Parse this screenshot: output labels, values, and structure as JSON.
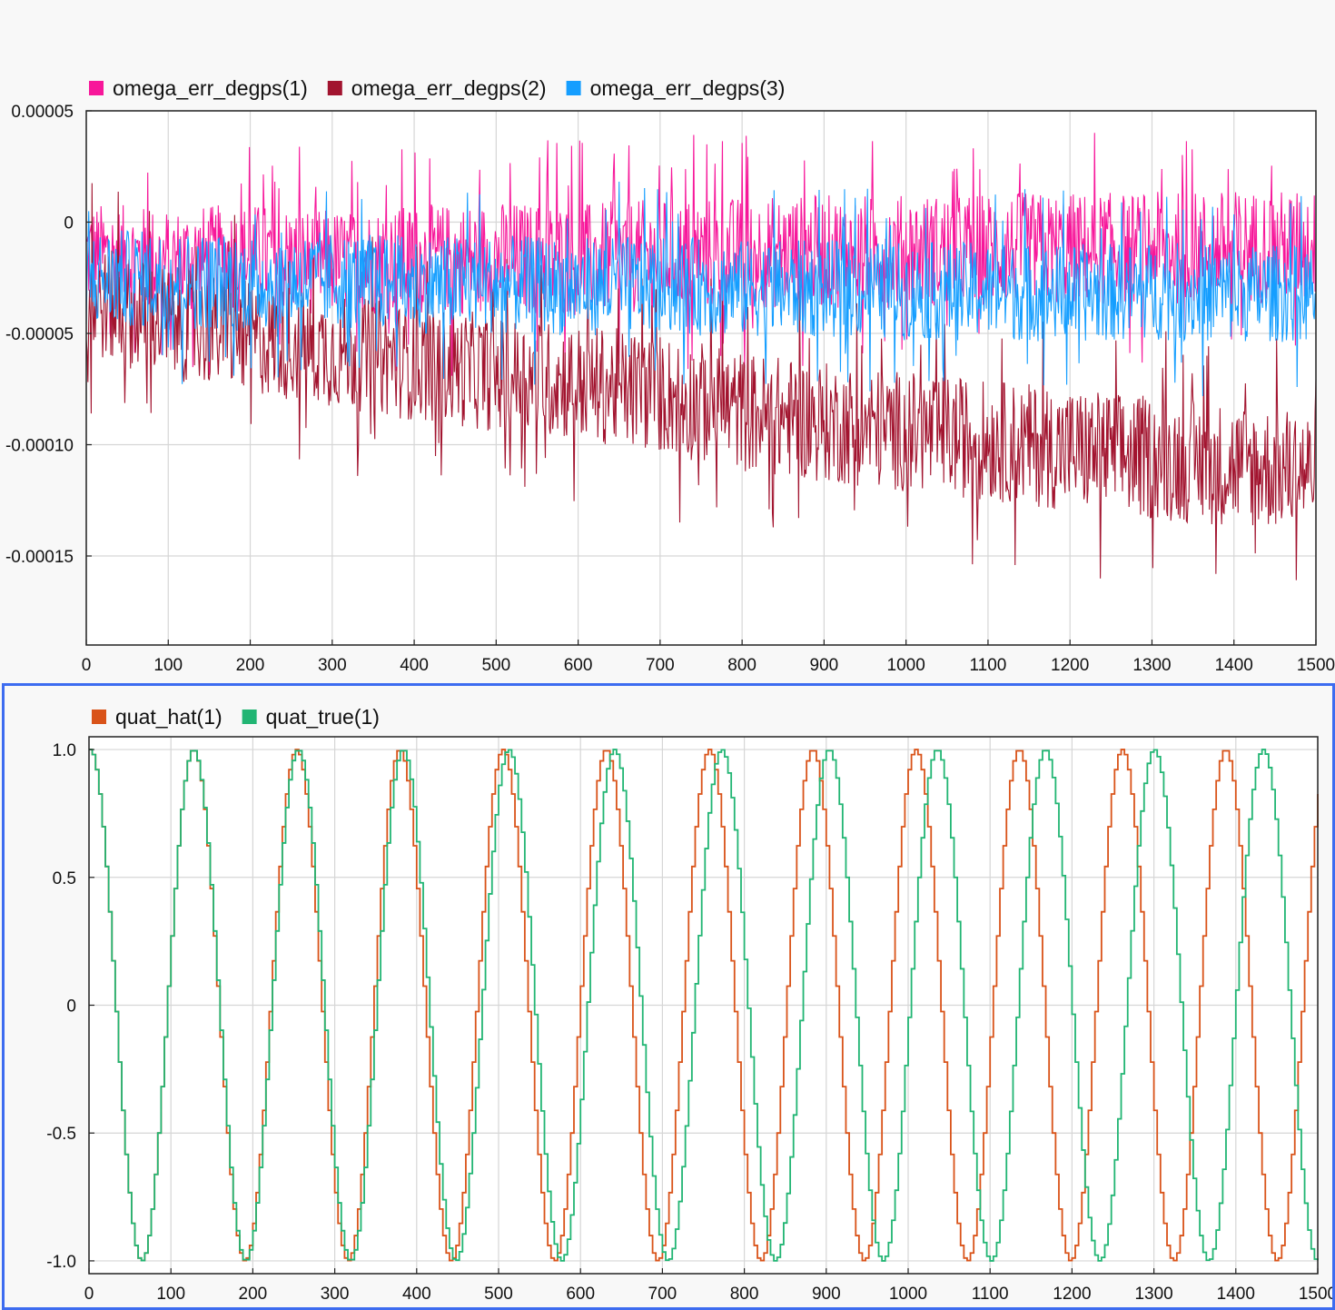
{
  "chart_data": [
    {
      "type": "line",
      "title": "",
      "xlabel": "",
      "ylabel": "",
      "xlim": [
        0,
        1500
      ],
      "ylim": [
        -0.00019,
        5e-05
      ],
      "xticks": [
        0,
        100,
        200,
        300,
        400,
        500,
        600,
        700,
        800,
        900,
        1000,
        1100,
        1200,
        1300,
        1400,
        1500
      ],
      "xtick_labels": [
        "0",
        "100",
        "200",
        "300",
        "400",
        "500",
        "600",
        "700",
        "800",
        "900",
        "1000",
        "1100",
        "1200",
        "1300",
        "1400",
        "1500"
      ],
      "yticks": [
        5e-05,
        0,
        -5e-05,
        -0.0001,
        -0.00015
      ],
      "ytick_labels": [
        "0.00005",
        "0",
        "-0.00005",
        "-0.00010",
        "-0.00015"
      ],
      "grid": true,
      "legend_position": "top-left",
      "series": [
        {
          "name": "omega_err_degps(1)",
          "color": "#f7179a",
          "x": [
            0,
            100,
            200,
            300,
            400,
            500,
            600,
            700,
            800,
            900,
            1000,
            1100,
            1200,
            1300,
            1400,
            1500
          ],
          "center": [
            -1.5e-05,
            -1.8e-05,
            -1.6e-05,
            -1.8e-05,
            -1.7e-05,
            -1.6e-05,
            -1.7e-05,
            -1.5e-05,
            -1.4e-05,
            -1.3e-05,
            -1.3e-05,
            -1.2e-05,
            -1.2e-05,
            -1.2e-05,
            -1.1e-05,
            -1.1e-05
          ],
          "spread": [
            2.8e-05,
            2.9e-05,
            2.9e-05,
            2.8e-05,
            2.9e-05,
            3e-05,
            3e-05,
            3e-05,
            3e-05,
            3e-05,
            3e-05,
            3e-05,
            3e-05,
            3e-05,
            3e-05,
            3e-05
          ]
        },
        {
          "name": "omega_err_degps(2)",
          "color": "#a2142f",
          "x": [
            0,
            100,
            200,
            300,
            400,
            500,
            600,
            700,
            800,
            900,
            1000,
            1100,
            1200,
            1300,
            1400,
            1500
          ],
          "center": [
            -3.5e-05,
            -4.5e-05,
            -5.2e-05,
            -5.8e-05,
            -6.3e-05,
            -6.8e-05,
            -7.2e-05,
            -7.7e-05,
            -8.5e-05,
            -9e-05,
            -9.4e-05,
            -9.8e-05,
            -0.000102,
            -0.000106,
            -0.000109,
            -0.000112
          ],
          "spread": [
            3e-05,
            3e-05,
            3e-05,
            3e-05,
            3.1e-05,
            3.1e-05,
            3.1e-05,
            3.2e-05,
            3.2e-05,
            3.2e-05,
            3.2e-05,
            3.2e-05,
            3.3e-05,
            3.3e-05,
            3.3e-05,
            3.3e-05
          ]
        },
        {
          "name": "omega_err_degps(3)",
          "color": "#159eff",
          "x": [
            0,
            100,
            200,
            300,
            400,
            500,
            600,
            700,
            800,
            900,
            1000,
            1100,
            1200,
            1300,
            1400,
            1500
          ],
          "center": [
            -2.5e-05,
            -2.6e-05,
            -2.7e-05,
            -2.6e-05,
            -2.8e-05,
            -2.8e-05,
            -2.9e-05,
            -2.8e-05,
            -3e-05,
            -3e-05,
            -3.1e-05,
            -3.1e-05,
            -3.2e-05,
            -3.1e-05,
            -3.2e-05,
            -3.2e-05
          ],
          "spread": [
            2.6e-05,
            2.6e-05,
            2.6e-05,
            2.6e-05,
            2.6e-05,
            2.6e-05,
            2.6e-05,
            2.6e-05,
            2.6e-05,
            2.6e-05,
            2.6e-05,
            2.6e-05,
            2.6e-05,
            2.6e-05,
            2.6e-05,
            2.6e-05
          ]
        }
      ]
    },
    {
      "type": "line",
      "title": "",
      "xlabel": "",
      "ylabel": "",
      "xlim": [
        0,
        1500
      ],
      "ylim": [
        -1.05,
        1.05
      ],
      "xticks": [
        0,
        100,
        200,
        300,
        400,
        500,
        600,
        700,
        800,
        900,
        1000,
        1100,
        1200,
        1300,
        1400,
        1500
      ],
      "xtick_labels": [
        "0",
        "100",
        "200",
        "300",
        "400",
        "500",
        "600",
        "700",
        "800",
        "900",
        "1000",
        "1100",
        "1200",
        "1300",
        "1400",
        "1500"
      ],
      "yticks": [
        1.0,
        0.5,
        0,
        -0.5,
        -1.0
      ],
      "ytick_labels": [
        "1.0",
        "0.5",
        "0",
        "-0.5",
        "-1.0"
      ],
      "grid": true,
      "legend_position": "top-left",
      "series": [
        {
          "name": "quat_hat(1)",
          "color": "#d95319",
          "shape": "cosine",
          "amplitude": 1.0,
          "peaks_x": [
            0,
            126,
            252,
            378,
            504,
            630,
            756,
            882,
            1008,
            1134,
            1260,
            1386
          ],
          "step": 4
        },
        {
          "name": "quat_true(1)",
          "color": "#21b573",
          "shape": "cosine",
          "amplitude": 1.0,
          "peaks_x": [
            0,
            126,
            254,
            382,
            511,
            640,
            771,
            902,
            1034,
            1166,
            1299,
            1432
          ],
          "step": 4
        }
      ]
    }
  ]
}
